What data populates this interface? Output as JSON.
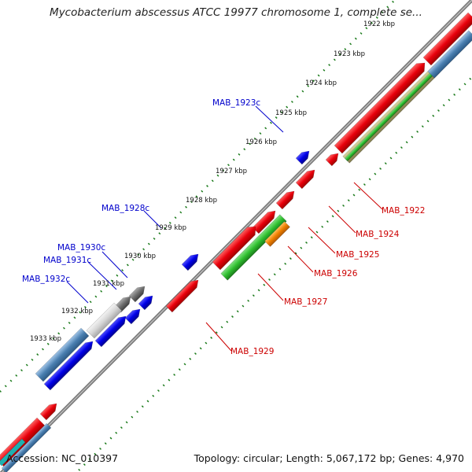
{
  "title": "Mycobacterium abscessus ATCC 19977 chromosome 1, complete se...",
  "footer": {
    "accession": "Accession: NC_010397",
    "summary": "Topology: circular; Length: 5,067,172 bp; Genes: 4,970"
  },
  "ticks": [
    "1922 kbp",
    "1923 kbp",
    "1924 kbp",
    "1925 kbp",
    "1926 kbp",
    "1927 kbp",
    "1928 kbp",
    "1929 kbp",
    "1930 kbp",
    "1931 kbp",
    "1932 kbp",
    "1933 kbp"
  ],
  "left_genes": [
    "MAB_1923c",
    "MAB_1928c",
    "MAB_1930c",
    "MAB_1931c",
    "MAB_1932c"
  ],
  "right_genes": [
    "MAB_1922",
    "MAB_1924",
    "MAB_1925",
    "MAB_1926",
    "MAB_1927",
    "MAB_1929"
  ],
  "colors": {
    "forward_gene": "#e8000b",
    "reverse_gene": "#0000e6",
    "trna": "#1fae1f",
    "misc": "#f08000",
    "blue_grey": "#4a7fb0",
    "grey": "#777777",
    "backbone": "#888888",
    "tick_dots": "#1a7a1a"
  }
}
